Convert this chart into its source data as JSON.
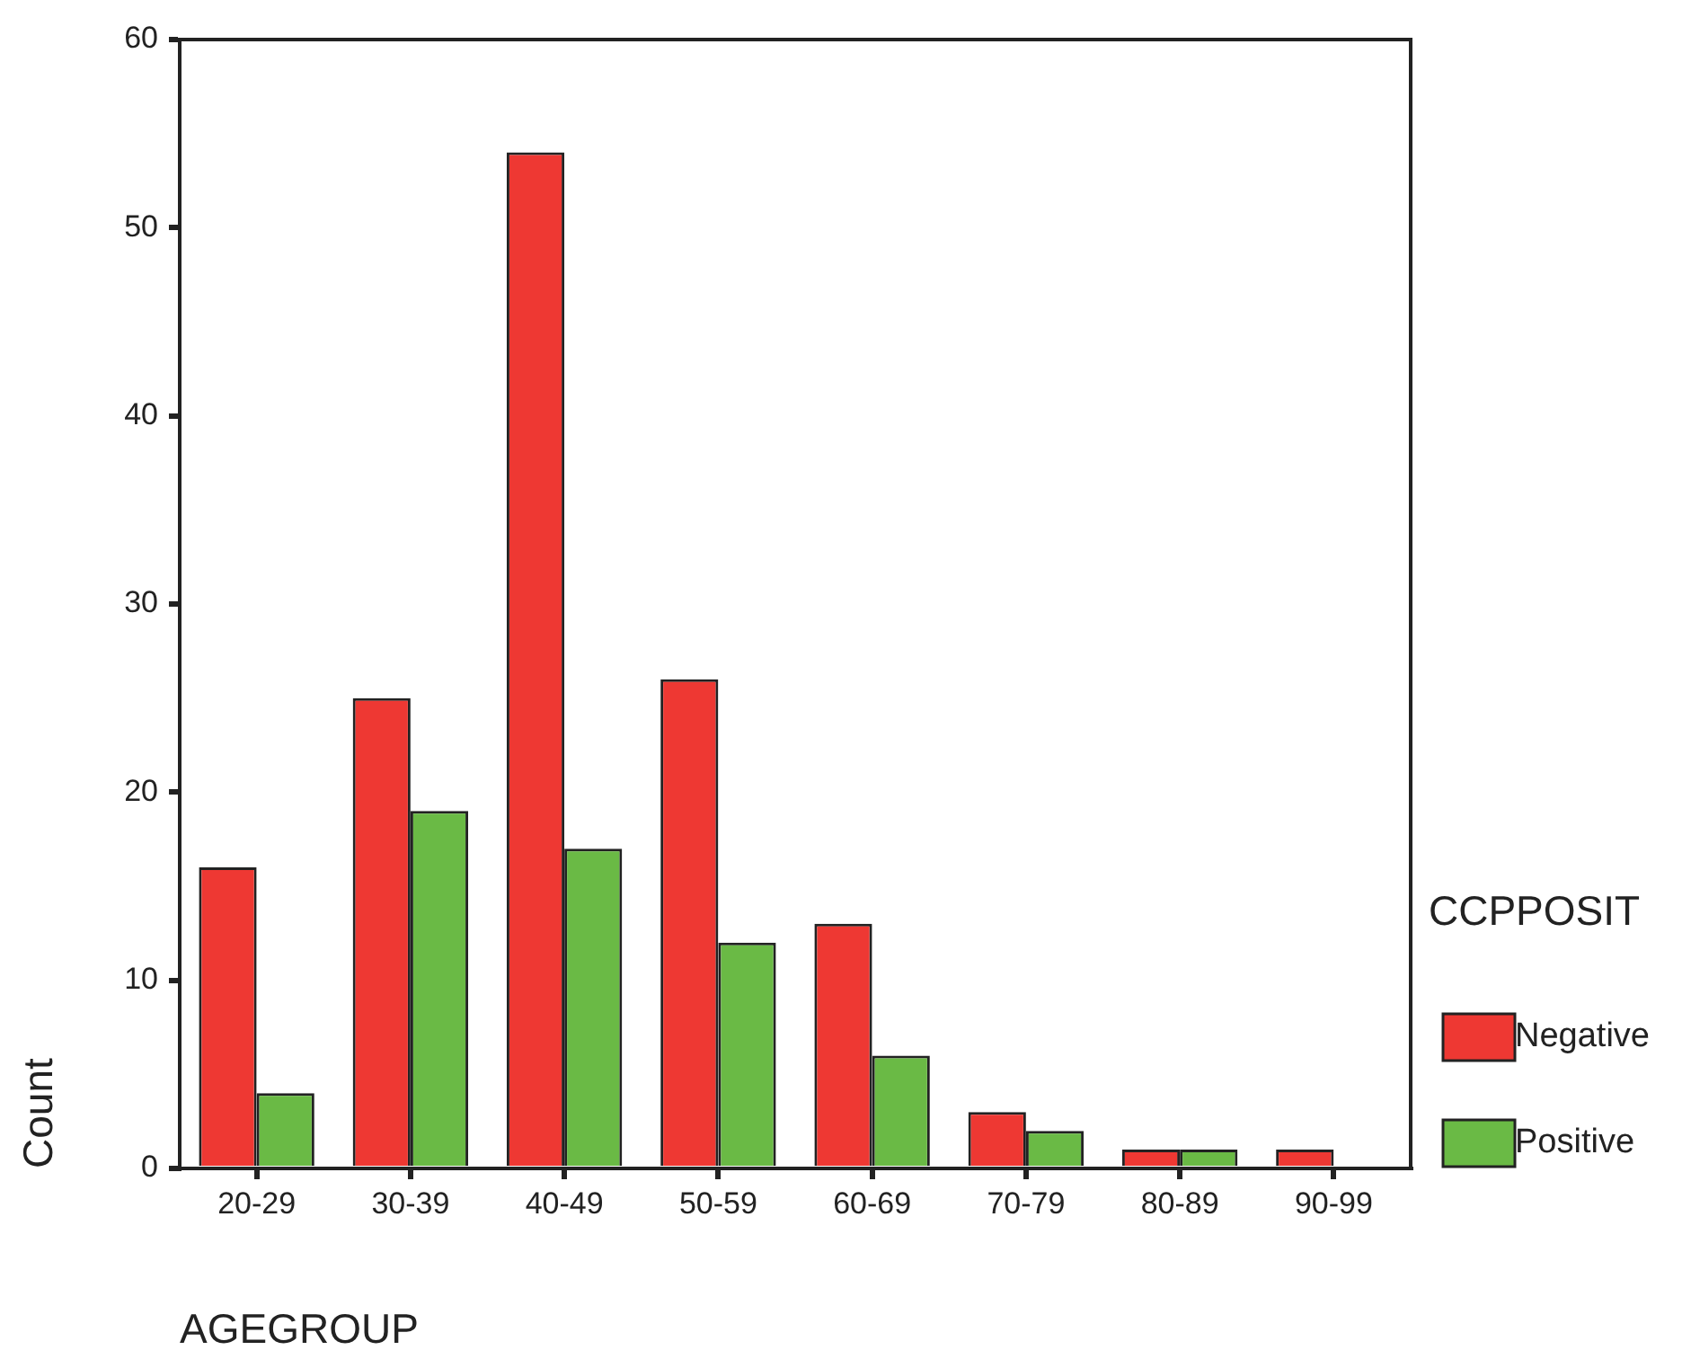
{
  "chart_data": {
    "type": "bar",
    "xlabel": "AGEGROUP",
    "ylabel": "Count",
    "legend_title": "CCPPOSIT",
    "categories": [
      "20-29",
      "30-39",
      "40-49",
      "50-59",
      "60-69",
      "70-79",
      "80-89",
      "90-99"
    ],
    "series": [
      {
        "name": "Negative",
        "color": "#ee3833",
        "values": [
          16,
          25,
          54,
          26,
          13,
          3,
          1,
          1
        ]
      },
      {
        "name": "Positive",
        "color": "#6aba45",
        "values": [
          4,
          19,
          17,
          12,
          6,
          2,
          1,
          0
        ]
      }
    ],
    "ylim": [
      0,
      60
    ],
    "yticks": [
      0,
      10,
      20,
      30,
      40,
      50,
      60
    ],
    "grid": false,
    "legend": "right"
  }
}
